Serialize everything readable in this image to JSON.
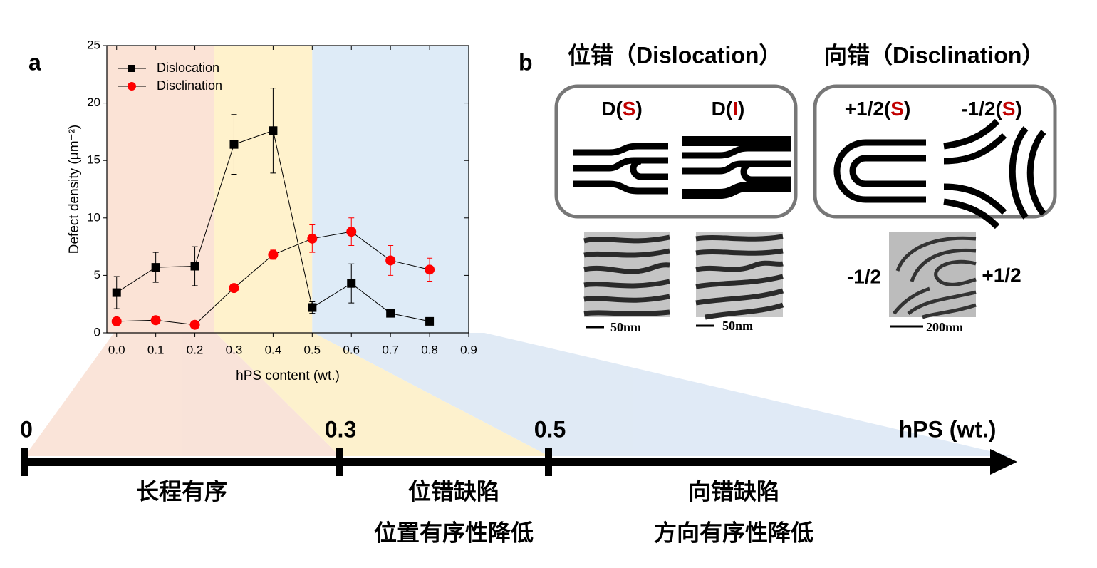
{
  "panel_labels": [
    "a",
    "b"
  ],
  "chart_data": {
    "type": "line",
    "x": [
      0,
      0.1,
      0.2,
      0.3,
      0.4,
      0.5,
      0.6,
      0.7,
      0.8
    ],
    "series": [
      {
        "name": "Dislocation",
        "color": "#000000",
        "marker": "square",
        "values": [
          3.5,
          5.7,
          5.8,
          16.4,
          17.6,
          2.2,
          4.3,
          1.7,
          1.0
        ],
        "errors": [
          1.4,
          1.3,
          1.7,
          2.6,
          3.7,
          0.5,
          1.7,
          0.3,
          0.1
        ]
      },
      {
        "name": "Disclination",
        "color": "#ff0000",
        "marker": "circle",
        "values": [
          1.0,
          1.1,
          0.7,
          3.9,
          6.8,
          8.2,
          8.8,
          6.3,
          5.5
        ],
        "errors": [
          0.3,
          0.2,
          0.2,
          0.2,
          0.4,
          1.2,
          1.2,
          1.3,
          1.0
        ]
      }
    ],
    "x_label": "hPS content (wt.)",
    "y_label": "Defect density (μm⁻²)",
    "xlim": [
      -0.025,
      0.9
    ],
    "ylim": [
      0,
      25
    ],
    "xticks": [
      {
        "value": 0,
        "label": "0.0"
      },
      0.1,
      0.2,
      0.3,
      0.4,
      0.5,
      0.6,
      0.7,
      0.8,
      0.9
    ],
    "yticks": [
      0,
      5,
      10,
      15,
      20,
      25
    ],
    "legend": "upper left",
    "regions": [
      {
        "from": -0.025,
        "to": 0.25,
        "color": "#fbe3d6"
      },
      {
        "from": 0.25,
        "to": 0.5,
        "color": "#fff2cc"
      },
      {
        "from": 0.5,
        "to": 0.9,
        "color": "#deebf7"
      }
    ]
  },
  "panel_b": {
    "headings": [
      "位错（Dislocation）",
      "向错（Disclination）"
    ],
    "defects": [
      {
        "prefix": "D(",
        "highlight": "S",
        "suffix": ")"
      },
      {
        "prefix": "D(",
        "highlight": "I",
        "suffix": ")"
      },
      {
        "prefix": "+1/2(",
        "highlight": "S",
        "suffix": ")"
      },
      {
        "prefix": "-1/2(",
        "highlight": "S",
        "suffix": ")"
      }
    ],
    "scale_bars": [
      "50nm",
      "50nm",
      "200nm"
    ],
    "charges": [
      "-1/2",
      "+1/2"
    ]
  },
  "timeline": {
    "ticks": [
      0,
      0.3,
      0.5
    ],
    "axis_label": "hPS (wt.)",
    "stages": [
      [
        "长程有序"
      ],
      [
        "位错缺陷",
        "位置有序性降低"
      ],
      [
        "向错缺陷",
        "方向有序性降低"
      ]
    ]
  }
}
